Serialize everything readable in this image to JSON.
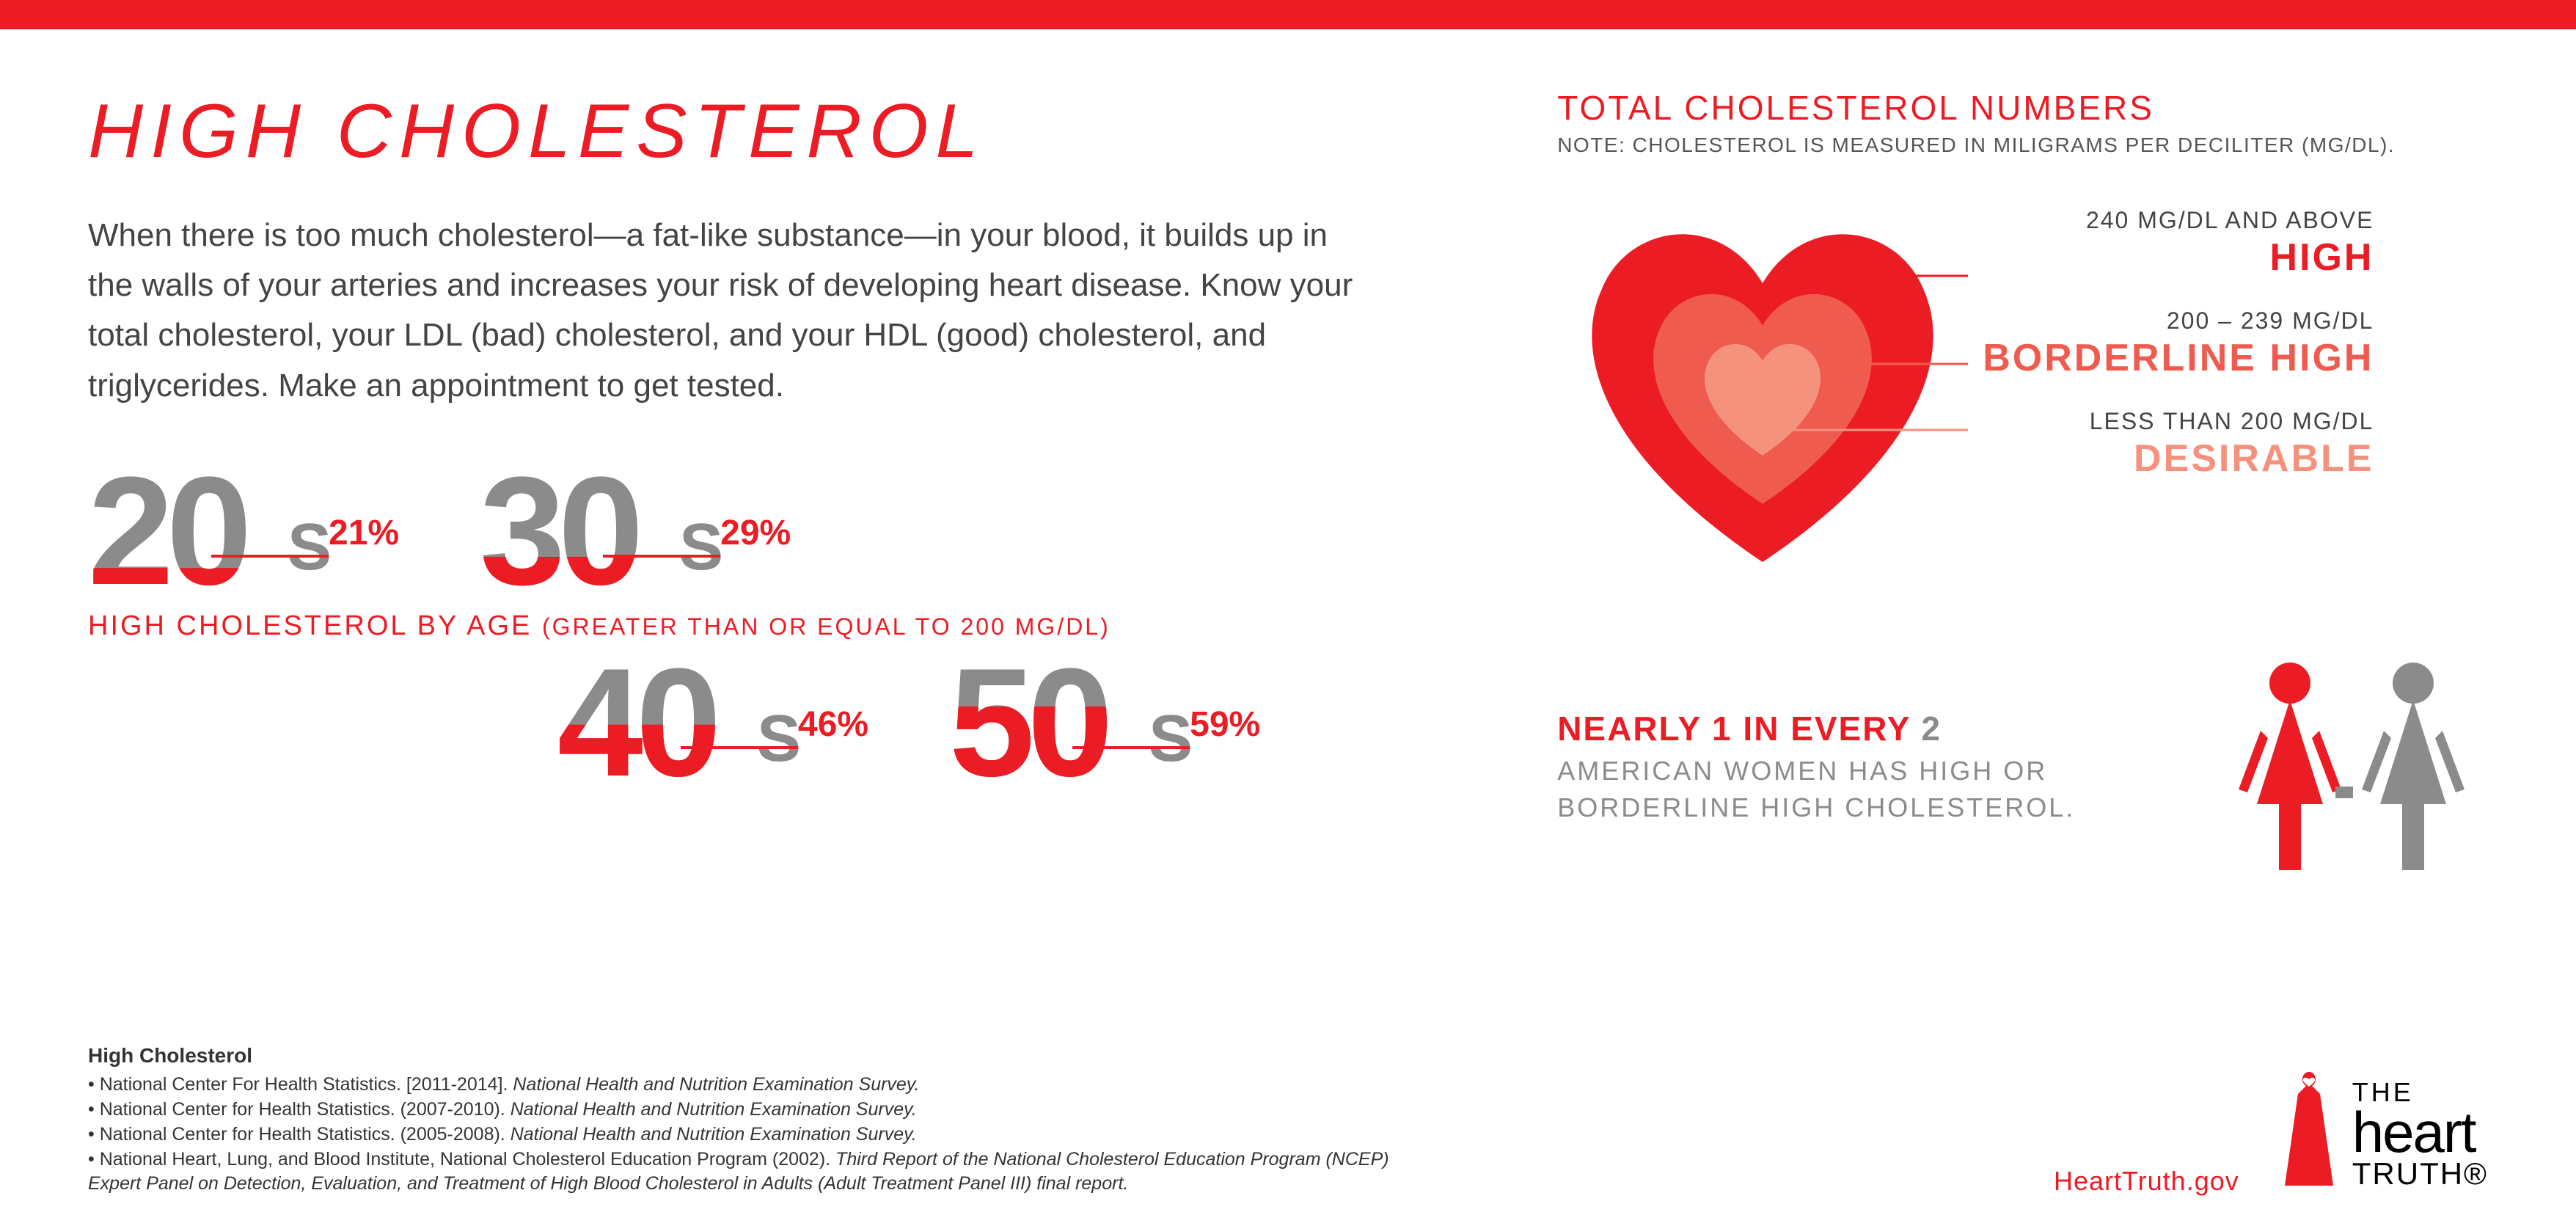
{
  "colors": {
    "red": "#ec1c24",
    "red2": "#ef5b4f",
    "red3": "#f5927e",
    "grey": "#8b8b8b",
    "text": "#444444",
    "top_bar": "#ec1c24"
  },
  "title": "HIGH CHOLESTEROL",
  "intro": "When there is too much cholesterol—a fat-like substance—in your blood, it builds up in the walls of your arteries and increases your risk of developing heart disease. Know your total cholesterol, your LDL (bad) cholesterol, and your HDL (good) cholesterol, and triglycerides. Make an appointment to get tested.",
  "ages": {
    "caption_main": "HIGH CHOLESTEROL BY AGE ",
    "caption_sub": "(GREATER THAN OR EQUAL TO 200 MG/DL)",
    "groups": [
      {
        "decade": "20",
        "suffix": "S",
        "pct": "21%",
        "fill": 0.21
      },
      {
        "decade": "30",
        "suffix": "S",
        "pct": "29%",
        "fill": 0.29
      },
      {
        "decade": "40",
        "suffix": "S",
        "pct": "46%",
        "fill": 0.46
      },
      {
        "decade": "50",
        "suffix": "S",
        "pct": "59%",
        "fill": 0.59
      }
    ]
  },
  "panel": {
    "title": "TOTAL CHOLESTEROL NUMBERS",
    "note": "NOTE: CHOLESTEROL IS MEASURED IN MILIGRAMS PER DECILITER (MG/DL).",
    "levels": [
      {
        "range": "240 MG/DL AND ABOVE",
        "label": "HIGH",
        "color": "#ec1c24"
      },
      {
        "range": "200 – 239 MG/DL",
        "label_prefix": "BORDERLINE ",
        "label": "HIGH",
        "color": "#ef5b4f"
      },
      {
        "range": "LESS THAN 200 MG/DL",
        "label": "DESIRABLE",
        "color": "#f5927e"
      }
    ],
    "heart_colors": [
      "#ec1c24",
      "#ef5b4f",
      "#f5927e"
    ]
  },
  "stat": {
    "main_part1": "NEARLY 1 IN EVERY ",
    "main_part2": "2",
    "sub": "AMERICAN WOMEN HAS HIGH OR BORDERLINE HIGH CHOLESTEROL.",
    "woman1_color": "#ec1c24",
    "woman2_color": "#8b8b8b"
  },
  "footer": {
    "ref_title": "High Cholesterol",
    "refs": [
      "National Center For Health Statistics. [2011-2014]. <em>National Health and Nutrition Examination Survey.</em>",
      "National Center for Health Statistics. (2007-2010). <em>National Health and Nutrition Examination Survey.</em>",
      "National Center for Health Statistics. (2005-2008). <em>National Health and Nutrition Examination Survey.</em>",
      "National Heart, Lung, and Blood Institute, National Cholesterol Education Program (2002). <em>Third Report of the National Cholesterol Education Program (NCEP) Expert Panel on Detection, Evaluation, and Treatment of High Blood Cholesterol in Adults (Adult Treatment Panel III) final report.</em>"
    ],
    "url": "HeartTruth.gov",
    "brand_the": "THE",
    "brand_heart": "heart",
    "brand_truth": "TRUTH®"
  }
}
